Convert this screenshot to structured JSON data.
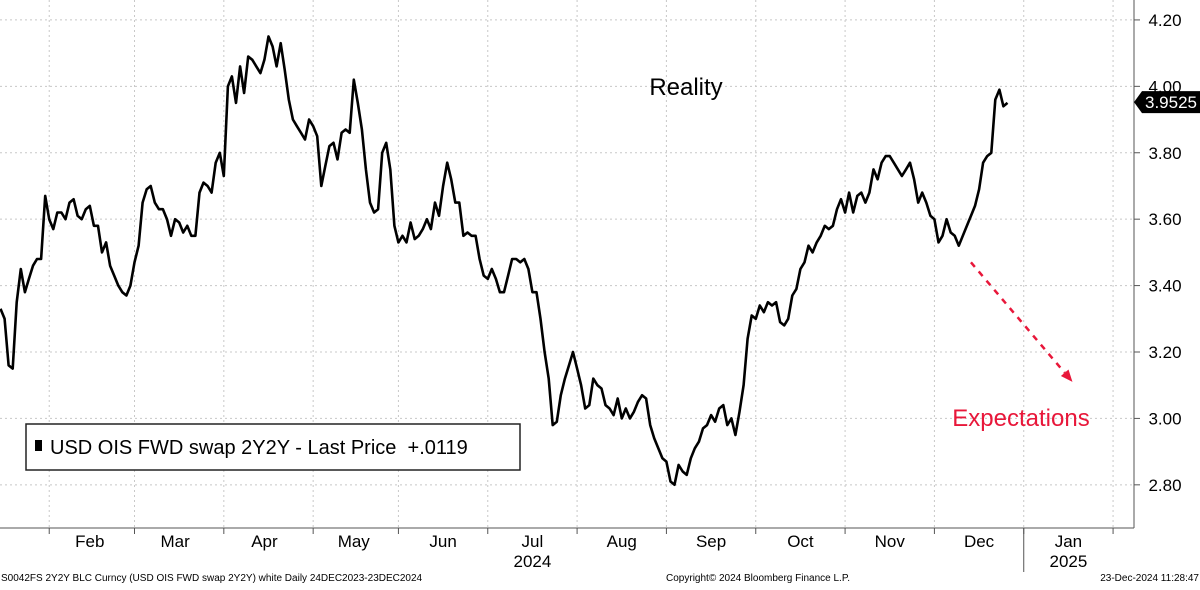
{
  "chart_data": {
    "type": "line",
    "series": [
      {
        "name": "USD OIS FWD swap 2Y2Y - Last Price",
        "color": "#000000",
        "values": [
          3.33,
          3.3,
          3.16,
          3.15,
          3.35,
          3.45,
          3.38,
          3.42,
          3.46,
          3.48,
          3.48,
          3.67,
          3.6,
          3.57,
          3.62,
          3.62,
          3.6,
          3.65,
          3.66,
          3.61,
          3.6,
          3.63,
          3.64,
          3.58,
          3.58,
          3.5,
          3.53,
          3.46,
          3.43,
          3.4,
          3.38,
          3.37,
          3.4,
          3.47,
          3.52,
          3.65,
          3.69,
          3.7,
          3.65,
          3.63,
          3.63,
          3.6,
          3.55,
          3.6,
          3.59,
          3.56,
          3.58,
          3.55,
          3.55,
          3.68,
          3.71,
          3.7,
          3.68,
          3.77,
          3.8,
          3.73,
          4.0,
          4.03,
          3.95,
          4.06,
          3.98,
          4.09,
          4.08,
          4.06,
          4.04,
          4.08,
          4.15,
          4.12,
          4.06,
          4.13,
          4.05,
          3.96,
          3.9,
          3.88,
          3.86,
          3.84,
          3.9,
          3.88,
          3.85,
          3.7,
          3.76,
          3.82,
          3.83,
          3.78,
          3.86,
          3.87,
          3.86,
          4.02,
          3.95,
          3.87,
          3.75,
          3.65,
          3.62,
          3.63,
          3.8,
          3.83,
          3.75,
          3.58,
          3.53,
          3.55,
          3.53,
          3.59,
          3.54,
          3.55,
          3.57,
          3.6,
          3.57,
          3.65,
          3.61,
          3.7,
          3.77,
          3.72,
          3.65,
          3.65,
          3.55,
          3.56,
          3.55,
          3.55,
          3.48,
          3.43,
          3.42,
          3.45,
          3.42,
          3.38,
          3.38,
          3.43,
          3.48,
          3.48,
          3.47,
          3.48,
          3.45,
          3.38,
          3.38,
          3.3,
          3.2,
          3.12,
          2.98,
          2.99,
          3.07,
          3.12,
          3.16,
          3.2,
          3.15,
          3.1,
          3.03,
          3.04,
          3.12,
          3.1,
          3.09,
          3.04,
          3.03,
          3.01,
          3.06,
          3.0,
          3.03,
          3.0,
          3.02,
          3.05,
          3.07,
          3.06,
          2.98,
          2.94,
          2.91,
          2.88,
          2.87,
          2.81,
          2.8,
          2.86,
          2.84,
          2.83,
          2.88,
          2.91,
          2.93,
          2.97,
          2.98,
          3.01,
          2.99,
          3.03,
          3.04,
          2.98,
          3.0,
          2.95,
          3.02,
          3.1,
          3.24,
          3.31,
          3.3,
          3.34,
          3.32,
          3.35,
          3.34,
          3.35,
          3.29,
          3.28,
          3.3,
          3.37,
          3.39,
          3.45,
          3.47,
          3.52,
          3.5,
          3.53,
          3.55,
          3.58,
          3.57,
          3.58,
          3.63,
          3.66,
          3.62,
          3.68,
          3.62,
          3.67,
          3.68,
          3.65,
          3.68,
          3.75,
          3.72,
          3.77,
          3.79,
          3.79,
          3.77,
          3.75,
          3.73,
          3.75,
          3.77,
          3.72,
          3.65,
          3.68,
          3.65,
          3.61,
          3.6,
          3.53,
          3.55,
          3.6,
          3.56,
          3.55,
          3.52,
          3.55,
          3.58,
          3.61,
          3.64,
          3.69,
          3.77,
          3.79,
          3.8,
          3.96,
          3.99,
          3.94,
          3.95
        ]
      }
    ],
    "ylim": [
      2.67,
      4.26
    ],
    "yticks": [
      "2.80",
      "3.00",
      "3.20",
      "3.40",
      "3.60",
      "3.80",
      "4.00",
      "4.20"
    ],
    "months": [
      {
        "label": "Feb",
        "pos": 22
      },
      {
        "label": "Mar",
        "pos": 43
      },
      {
        "label": "Apr",
        "pos": 65
      },
      {
        "label": "May",
        "pos": 87
      },
      {
        "label": "Jun",
        "pos": 109
      },
      {
        "label": "Jul",
        "pos": 131
      },
      {
        "label": "Aug",
        "pos": 153
      },
      {
        "label": "Sep",
        "pos": 175
      },
      {
        "label": "Oct",
        "pos": 197
      },
      {
        "label": "Nov",
        "pos": 219
      },
      {
        "label": "Dec",
        "pos": 241
      },
      {
        "label": "Jan",
        "pos": 263
      }
    ],
    "month_boundaries": [
      12,
      33,
      55,
      77,
      98,
      120,
      142,
      164,
      186,
      208,
      230,
      252,
      274
    ],
    "year_labels": [
      {
        "label": "2024",
        "pos": 131
      },
      {
        "label": "2025",
        "pos": 263
      }
    ],
    "year_divider": 252,
    "last_value_label": "3.9525",
    "last_value": 3.9525,
    "annotations": {
      "reality": "Reality",
      "expectations": "Expectations",
      "expectations_color": "#e8173a",
      "arrow_from": {
        "x": 239,
        "y": 3.47
      },
      "arrow_to": {
        "x": 264,
        "y": 3.11
      }
    },
    "legend": {
      "text": "USD OIS FWD swap 2Y2Y - Last Price  +.0119",
      "position": "bottom-left"
    }
  },
  "footer": {
    "left": "S0042FS 2Y2Y BLC Curncy (USD OIS FWD swap 2Y2Y) white  Daily 24DEC2023-23DEC2024",
    "center": "Copyright© 2024 Bloomberg Finance L.P.",
    "right": "23-Dec-2024 11:28:47"
  }
}
